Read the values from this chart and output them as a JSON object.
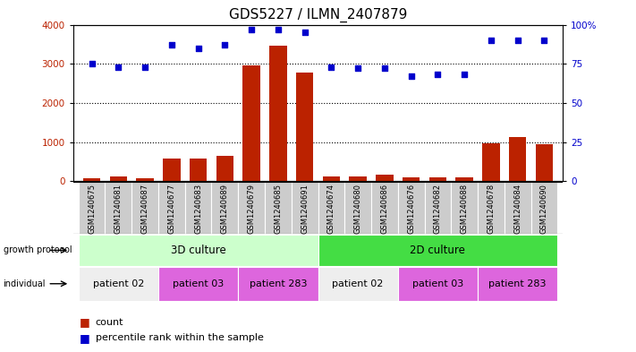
{
  "title": "GDS5227 / ILMN_2407879",
  "samples": [
    "GSM1240675",
    "GSM1240681",
    "GSM1240687",
    "GSM1240677",
    "GSM1240683",
    "GSM1240689",
    "GSM1240679",
    "GSM1240685",
    "GSM1240691",
    "GSM1240674",
    "GSM1240680",
    "GSM1240686",
    "GSM1240676",
    "GSM1240682",
    "GSM1240688",
    "GSM1240678",
    "GSM1240684",
    "GSM1240690"
  ],
  "counts": [
    80,
    130,
    80,
    570,
    590,
    640,
    2950,
    3460,
    2780,
    120,
    130,
    160,
    100,
    90,
    100,
    960,
    1120,
    950
  ],
  "percentiles": [
    75,
    73,
    73,
    87,
    85,
    87,
    97,
    97,
    95,
    73,
    72,
    72,
    67,
    68,
    68,
    90,
    90,
    90
  ],
  "ylim_left": [
    0,
    4000
  ],
  "ylim_right": [
    0,
    100
  ],
  "yticks_left": [
    0,
    1000,
    2000,
    3000,
    4000
  ],
  "yticks_right": [
    0,
    25,
    50,
    75,
    100
  ],
  "bar_color": "#bb2200",
  "dot_color": "#0000cc",
  "growth_3d_color": "#ccffcc",
  "growth_2d_color": "#44dd44",
  "sample_bg_color": "#cccccc",
  "indiv_white_color": "#eeeeee",
  "indiv_pink_color": "#dd66dd",
  "title_fontsize": 11,
  "tick_fontsize": 7.5,
  "sample_fontsize": 6,
  "band_fontsize": 8.5,
  "legend_fontsize": 8,
  "individual_groups": [
    {
      "label": "patient 02",
      "start": 0,
      "end": 3,
      "color": "#eeeeee"
    },
    {
      "label": "patient 03",
      "start": 3,
      "end": 6,
      "color": "#dd66dd"
    },
    {
      "label": "patient 283",
      "start": 6,
      "end": 9,
      "color": "#dd66dd"
    },
    {
      "label": "patient 02",
      "start": 9,
      "end": 12,
      "color": "#eeeeee"
    },
    {
      "label": "patient 03",
      "start": 12,
      "end": 15,
      "color": "#dd66dd"
    },
    {
      "label": "patient 283",
      "start": 15,
      "end": 18,
      "color": "#dd66dd"
    }
  ]
}
